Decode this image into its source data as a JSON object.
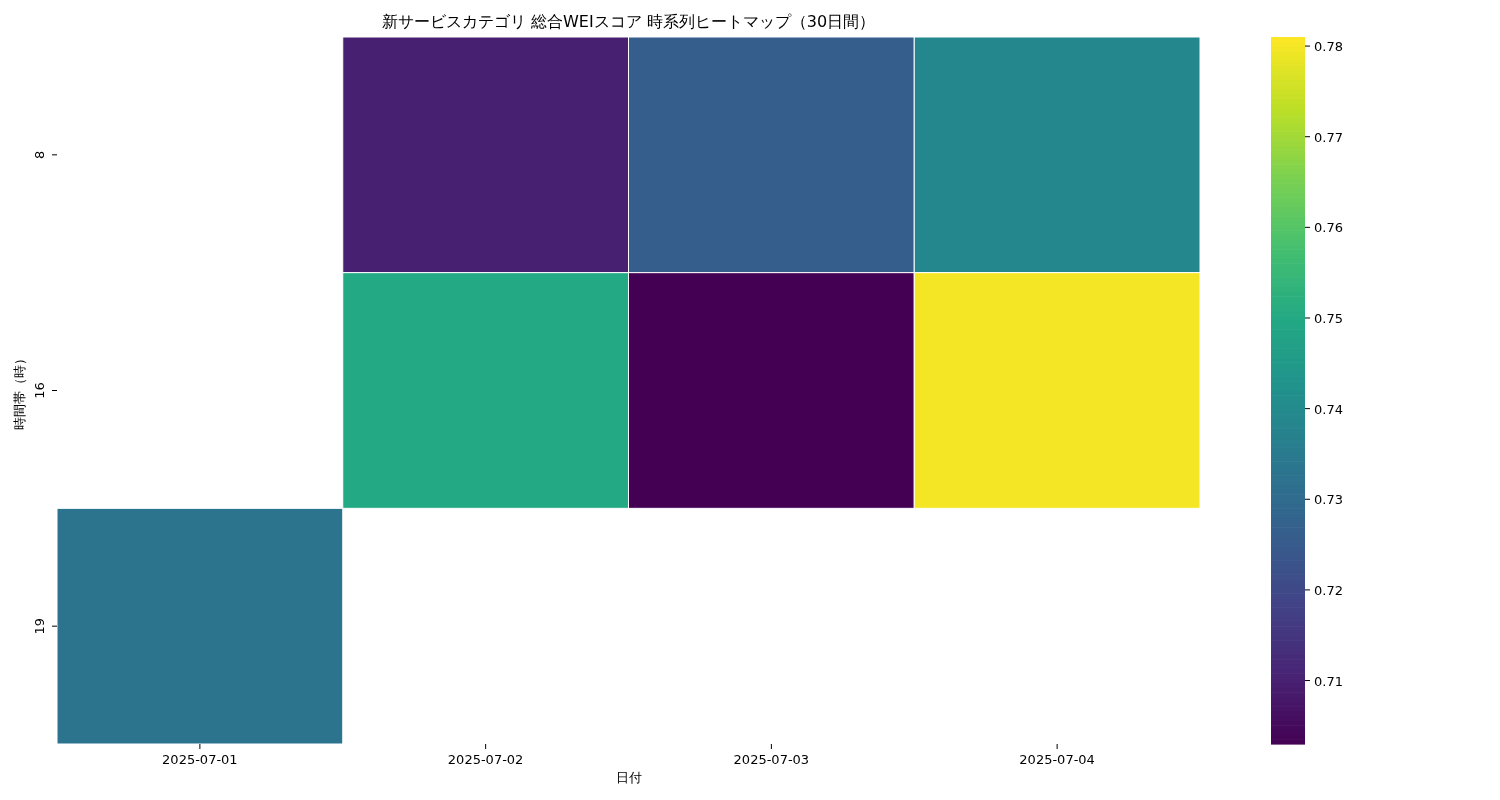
{
  "chart_data": {
    "type": "heatmap",
    "title": "新サービスカテゴリ 総合WEIスコア 時系列ヒートマップ（30日間）",
    "xlabel": "日付",
    "ylabel": "時間帯（時）",
    "categories": [
      "2025-07-01",
      "2025-07-02",
      "2025-07-03",
      "2025-07-04"
    ],
    "y_categories": [
      "8",
      "16",
      "19"
    ],
    "cells": [
      [
        null,
        0.71,
        0.726,
        0.739
      ],
      [
        null,
        0.75,
        0.703,
        0.78
      ],
      [
        0.733,
        null,
        null,
        null
      ]
    ],
    "clim": [
      0.703,
      0.781
    ],
    "cticks": [
      0.71,
      0.72,
      0.73,
      0.74,
      0.75,
      0.76,
      0.77,
      0.78
    ]
  }
}
